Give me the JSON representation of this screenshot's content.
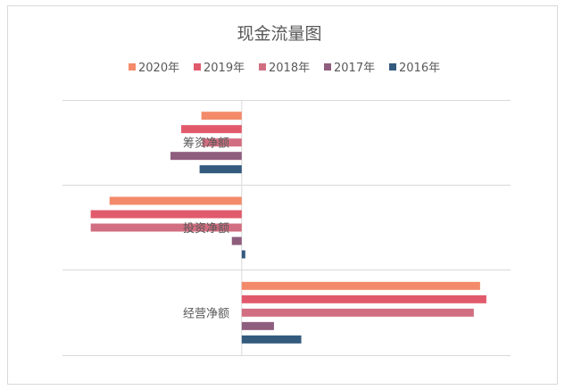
{
  "chart_data": {
    "type": "bar",
    "orientation": "horizontal",
    "title": "现金流量图",
    "categories": [
      "筹资净额",
      "投资净额",
      "经营净额"
    ],
    "series": [
      {
        "name": "2020年",
        "color": "#F38B6A",
        "values": [
          -0.9,
          -2.95,
          5.32
        ]
      },
      {
        "name": "2019年",
        "color": "#E15A6C",
        "values": [
          -1.35,
          -3.37,
          5.46
        ]
      },
      {
        "name": "2018年",
        "color": "#D26E81",
        "values": [
          -0.88,
          -3.37,
          5.18
        ]
      },
      {
        "name": "2017年",
        "color": "#8F5D7E",
        "values": [
          -1.59,
          -0.22,
          0.72
        ]
      },
      {
        "name": "2016年",
        "color": "#345A7E",
        "values": [
          -0.94,
          0.08,
          1.33
        ]
      }
    ],
    "xlim": [
      -4,
      6
    ],
    "grid": true,
    "legend": "top"
  }
}
